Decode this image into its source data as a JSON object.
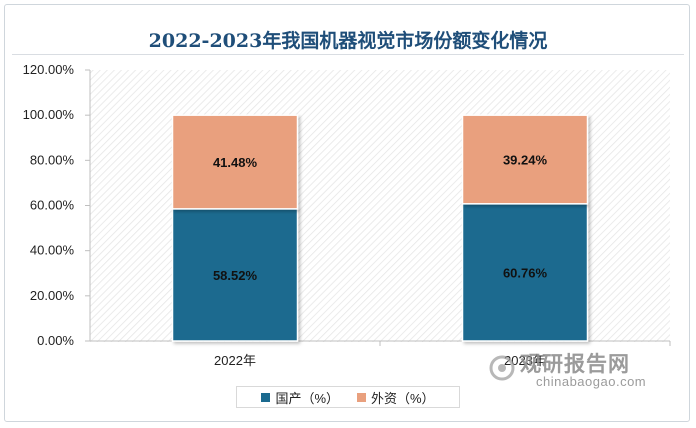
{
  "chart_data": {
    "type": "bar",
    "stacked": true,
    "title": "2022-2023年我国机器视觉市场份额变化情况",
    "categories": [
      "2022年",
      "2023年"
    ],
    "series": [
      {
        "name": "国产（%）",
        "values": [
          58.52,
          60.76
        ],
        "labels": [
          "58.52%",
          "60.76%"
        ],
        "color": "#1b6a8f"
      },
      {
        "name": "外资（%）",
        "values": [
          41.48,
          39.24
        ],
        "labels": [
          "41.48%",
          "39.24%"
        ],
        "color": "#e9a07e"
      }
    ],
    "yticks": [
      "0.00%",
      "20.00%",
      "40.00%",
      "60.00%",
      "80.00%",
      "100.00%",
      "120.00%"
    ],
    "ylim": [
      0,
      120
    ],
    "xlabel": "",
    "ylabel": "",
    "grid": false,
    "legend_position": "bottom"
  },
  "watermark": {
    "cn": "观研报告网",
    "en": "chinabaogao.com"
  }
}
